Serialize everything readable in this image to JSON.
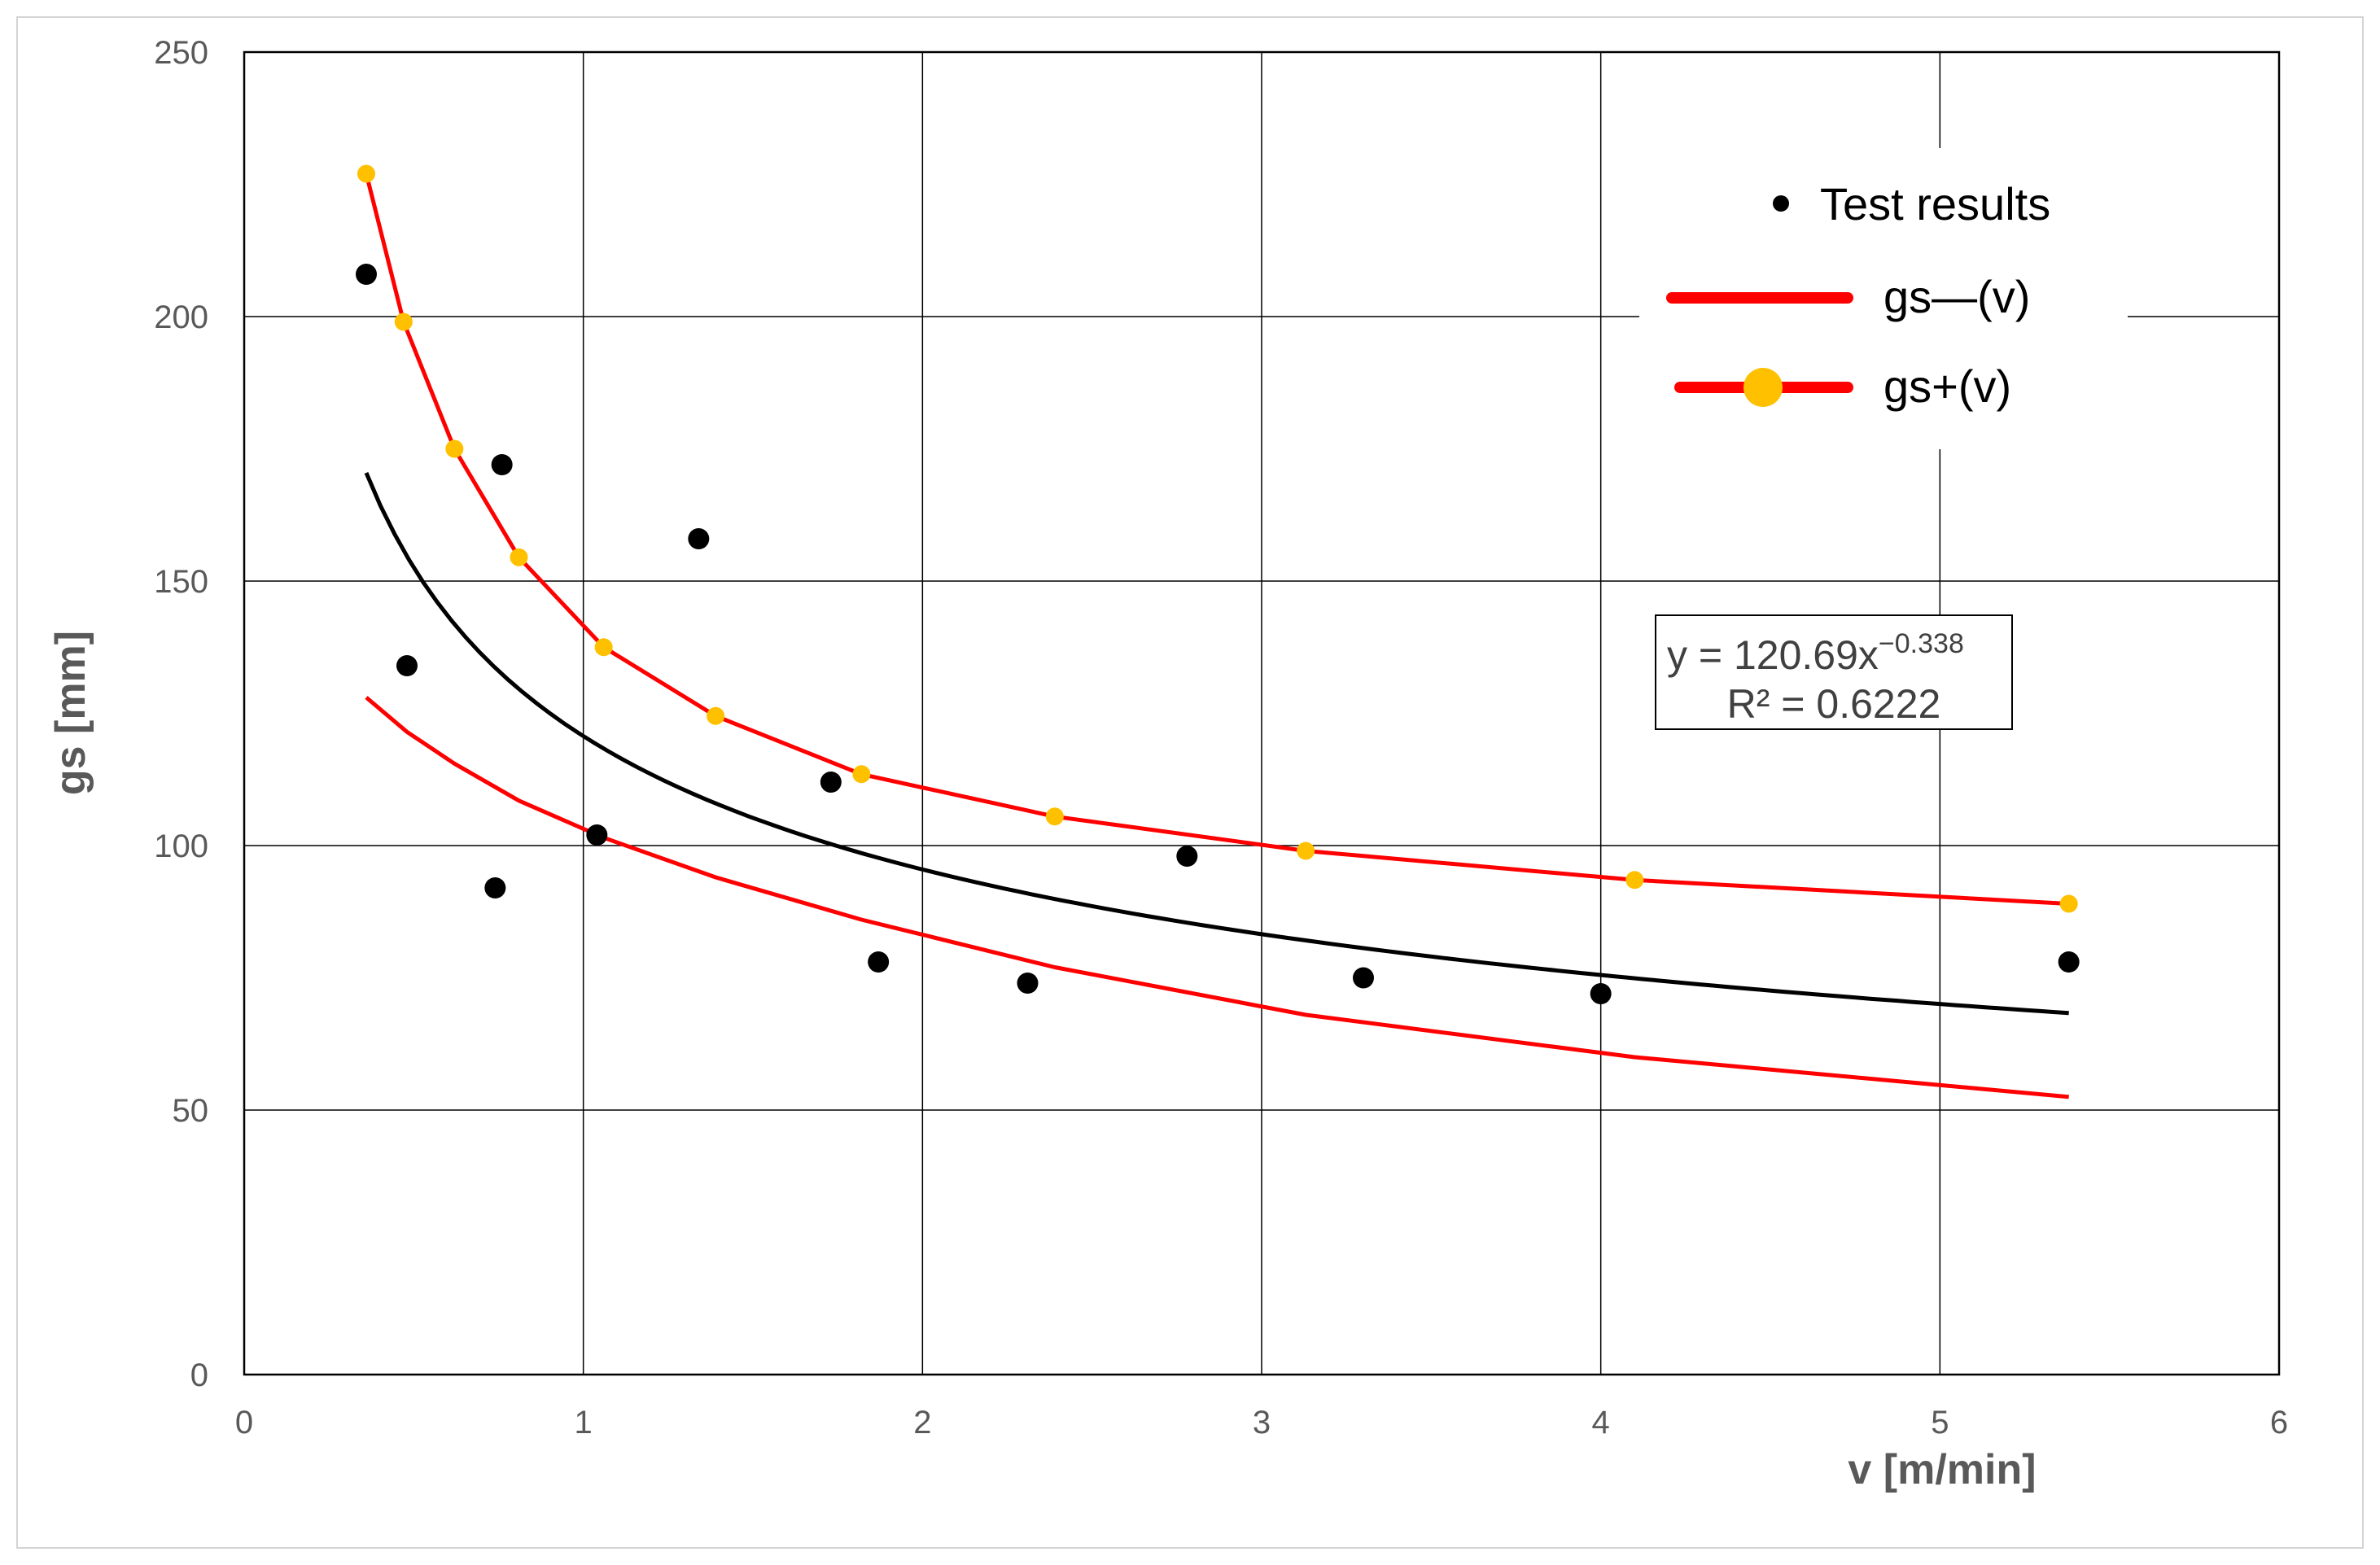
{
  "chart_data": {
    "type": "scatter",
    "xlabel": "v [m/min]",
    "ylabel": "gs [mm]",
    "xlim": [
      0,
      6
    ],
    "ylim": [
      0,
      250
    ],
    "x_ticks": [
      "0",
      "1",
      "2",
      "3",
      "4",
      "5",
      "6"
    ],
    "y_ticks": [
      "0",
      "50",
      "100",
      "150",
      "200",
      "250"
    ],
    "grid": true,
    "legend_position": "top-right",
    "series": [
      {
        "name": "Test results",
        "kind": "scatter",
        "color": "#000000",
        "x": [
          0.36,
          0.48,
          0.74,
          0.76,
          1.04,
          1.34,
          1.73,
          1.87,
          2.31,
          2.78,
          3.3,
          4.0,
          5.38
        ],
        "y": [
          208,
          134,
          92,
          172,
          102,
          158,
          112,
          78,
          74,
          98,
          75,
          72,
          78
        ]
      },
      {
        "name": "gs—(v)",
        "kind": "line",
        "color": "#ff0000",
        "x": [
          0.36,
          0.48,
          0.62,
          0.81,
          1.06,
          1.39,
          1.82,
          2.39,
          3.13,
          4.1,
          5.38
        ],
        "y": [
          128,
          121.5,
          115.5,
          108.5,
          101.5,
          94,
          86,
          77,
          68,
          60,
          52.5
        ]
      },
      {
        "name": "gs+(v)",
        "kind": "line-markers",
        "color": "#ff0000",
        "marker_color": "#ffc000",
        "x": [
          0.36,
          0.47,
          0.62,
          0.81,
          1.06,
          1.39,
          1.82,
          2.39,
          3.13,
          4.1,
          5.38
        ],
        "y": [
          227,
          199,
          175,
          154.5,
          137.5,
          124.5,
          113.5,
          105.5,
          99,
          93.5,
          89
        ]
      },
      {
        "name": "trendline",
        "kind": "power-trend",
        "color": "#000000",
        "a": 120.69,
        "b": -0.338,
        "x_range": [
          0.36,
          5.38
        ]
      }
    ],
    "annotation": {
      "equation_main": "y = 120.69x",
      "equation_exp": "−0.338",
      "r_squared": "R² = 0.6222"
    }
  },
  "legend": {
    "items": [
      "Test results",
      "gs—(v)",
      "gs+(v)"
    ]
  }
}
